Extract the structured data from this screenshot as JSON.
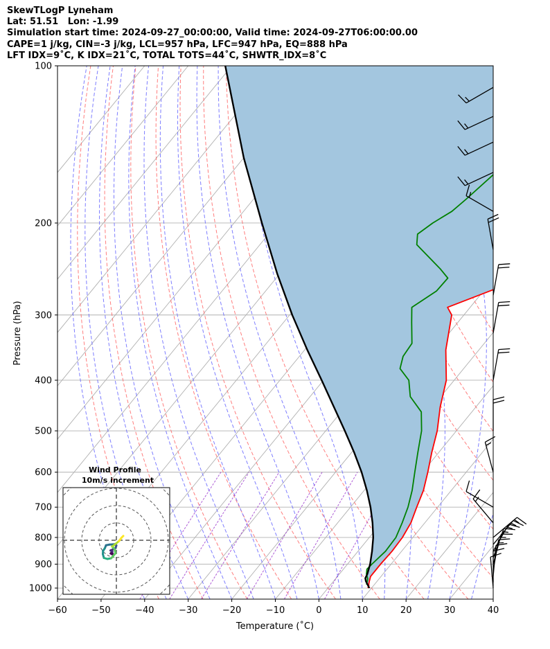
{
  "header": {
    "lines": [
      "SkewTLogP Lyneham",
      "Lat: 51.51   Lon: -1.99",
      "Simulation start time: 2024-09-27_00:00:00, Valid time: 2024-09-27T06:00:00.00",
      "CAPE=1 j/kg, CIN=-3 j/kg, LCL=957 hPa, LFC=947 hPa, EQ=888 hPa",
      "LFT IDX=9˚C, K IDX=21˚C, TOTAL TOTS=44˚C, SHWTR_IDX=8˚C"
    ]
  },
  "chart_data": [
    {
      "type": "line",
      "subtype": "skew-t log-p",
      "xlabel": "Temperature (˚C)",
      "ylabel": "Pressure (hPa)",
      "x_axis": {
        "range": [
          -60,
          40
        ],
        "ticks": [
          -60,
          -50,
          -40,
          -30,
          -20,
          -10,
          0,
          10,
          20,
          30,
          40
        ]
      },
      "y_axis": {
        "scale": "log",
        "range": [
          1050,
          100
        ],
        "ticks": [
          1000,
          900,
          800,
          700,
          600,
          500,
          400,
          300,
          200,
          100
        ]
      },
      "grid": true,
      "colors": {
        "temperature": "#ff0000",
        "dewpoint": "#008000",
        "parcel": "#000000",
        "cape_fill": "#a3c6df",
        "dry_adiabats": "#ff6666",
        "moist_adiabats": "#6666ff",
        "mixing_ratio": "#9933cc",
        "isotherms": "#b0b0b0"
      },
      "series": [
        {
          "key": "temperature",
          "points": [
            [
              1000,
              9.2
            ],
            [
              970,
              8.2
            ],
            [
              950,
              7.6
            ],
            [
              925,
              7.6
            ],
            [
              900,
              7.6
            ],
            [
              850,
              7.8
            ],
            [
              800,
              7.6
            ],
            [
              750,
              6.8
            ],
            [
              700,
              5.2
            ],
            [
              650,
              3.6
            ],
            [
              600,
              1.2
            ],
            [
              550,
              -1.6
            ],
            [
              500,
              -4.4
            ],
            [
              450,
              -8.2
            ],
            [
              400,
              -11.8
            ],
            [
              350,
              -17.6
            ],
            [
              300,
              -22.8
            ],
            [
              290,
              -25.2
            ],
            [
              270,
              -18.6
            ],
            [
              250,
              -11.4
            ],
            [
              220,
              -3.8
            ],
            [
              200,
              1.6
            ],
            [
              180,
              7.6
            ],
            [
              170,
              12.6
            ],
            [
              150,
              18.4
            ],
            [
              130,
              21.2
            ],
            [
              110,
              23.6
            ],
            [
              100,
              24.0
            ]
          ]
        },
        {
          "key": "dewpoint",
          "points": [
            [
              985,
              8.2
            ],
            [
              960,
              7.4
            ],
            [
              940,
              6.2
            ],
            [
              920,
              5.4
            ],
            [
              900,
              5.6
            ],
            [
              850,
              6.3
            ],
            [
              800,
              6.1
            ],
            [
              750,
              4.8
            ],
            [
              700,
              3.2
            ],
            [
              650,
              1.0
            ],
            [
              600,
              -1.8
            ],
            [
              550,
              -4.8
            ],
            [
              500,
              -8.0
            ],
            [
              460,
              -11.6
            ],
            [
              430,
              -17.0
            ],
            [
              400,
              -20.4
            ],
            [
              380,
              -24.6
            ],
            [
              360,
              -26.2
            ],
            [
              340,
              -26.6
            ],
            [
              310,
              -30.6
            ],
            [
              290,
              -33.4
            ],
            [
              270,
              -30.8
            ],
            [
              255,
              -30.6
            ],
            [
              245,
              -34.0
            ],
            [
              220,
              -44.0
            ],
            [
              210,
              -45.8
            ],
            [
              200,
              -44.4
            ],
            [
              190,
              -42.2
            ],
            [
              180,
              -41.2
            ],
            [
              160,
              -39.4
            ],
            [
              140,
              -35.0
            ],
            [
              120,
              -28.2
            ],
            [
              100,
              -21.0
            ]
          ]
        },
        {
          "key": "parcel",
          "points": [
            [
              1000,
              9.5
            ],
            [
              970,
              7.4
            ],
            [
              957,
              6.7
            ],
            [
              940,
              6.4
            ],
            [
              900,
              5.2
            ],
            [
              850,
              3.2
            ],
            [
              800,
              0.9
            ],
            [
              750,
              -2.0
            ],
            [
              700,
              -5.4
            ],
            [
              650,
              -9.4
            ],
            [
              600,
              -14.0
            ],
            [
              550,
              -19.4
            ],
            [
              500,
              -25.6
            ],
            [
              450,
              -32.6
            ],
            [
              400,
              -40.4
            ],
            [
              350,
              -49.4
            ],
            [
              300,
              -59.4
            ],
            [
              250,
              -70.6
            ],
            [
              200,
              -83.6
            ],
            [
              150,
              -100.0
            ],
            [
              100,
              -121.5
            ]
          ]
        }
      ]
    },
    {
      "type": "line",
      "subtype": "hodograph",
      "title": "Wind Profile",
      "subtitle": "10m/s increment",
      "ring_spacing": 10,
      "units": "m/s",
      "points": [
        [
          4.0,
          2.5
        ],
        [
          3.0,
          1.5
        ],
        [
          1.5,
          -0.5
        ],
        [
          -1.0,
          -2.5
        ],
        [
          -1.5,
          -3.0
        ],
        [
          -2.5,
          -3.6
        ],
        [
          -1.0,
          -5.2
        ],
        [
          -0.5,
          -7.5
        ],
        [
          -3.0,
          -10.4
        ],
        [
          -5.2,
          -10.8
        ],
        [
          -7.2,
          -10.2
        ],
        [
          -7.8,
          -8.0
        ],
        [
          -7.7,
          -6.2
        ],
        [
          -6.6,
          -4.5
        ],
        [
          -6.0,
          -2.9
        ],
        [
          -4.0,
          -2.5
        ],
        [
          -1.0,
          -2.3
        ],
        [
          0.0,
          -3.0
        ],
        [
          -0.5,
          -4.6
        ],
        [
          -2.0,
          -5.3
        ],
        [
          -3.4,
          -5.9
        ],
        [
          -2.3,
          -6.6
        ],
        [
          -3.3,
          -7.6
        ],
        [
          -2.0,
          -8.3
        ],
        [
          -2.6,
          -6.6
        ]
      ]
    }
  ],
  "wind_barbs": [
    {
      "p": 1000,
      "dir_deg": 355,
      "speed_kt": 10
    },
    {
      "p": 975,
      "dir_deg": 0,
      "speed_kt": 10
    },
    {
      "p": 950,
      "dir_deg": 5,
      "speed_kt": 10
    },
    {
      "p": 925,
      "dir_deg": 10,
      "speed_kt": 15
    },
    {
      "p": 900,
      "dir_deg": 15,
      "speed_kt": 15
    },
    {
      "p": 875,
      "dir_deg": 20,
      "speed_kt": 15
    },
    {
      "p": 850,
      "dir_deg": 30,
      "speed_kt": 15
    },
    {
      "p": 825,
      "dir_deg": 40,
      "speed_kt": 15
    },
    {
      "p": 800,
      "dir_deg": 50,
      "speed_kt": 15
    },
    {
      "p": 750,
      "dir_deg": 320,
      "speed_kt": 15
    },
    {
      "p": 700,
      "dir_deg": 300,
      "speed_kt": 10
    },
    {
      "p": 600,
      "dir_deg": 345,
      "speed_kt": 15
    },
    {
      "p": 500,
      "dir_deg": 0,
      "speed_kt": 20
    },
    {
      "p": 400,
      "dir_deg": 10,
      "speed_kt": 20
    },
    {
      "p": 325,
      "dir_deg": 10,
      "speed_kt": 20
    },
    {
      "p": 275,
      "dir_deg": 10,
      "speed_kt": 20
    },
    {
      "p": 225,
      "dir_deg": 350,
      "speed_kt": 20
    },
    {
      "p": 190,
      "dir_deg": 300,
      "speed_kt": 15
    },
    {
      "p": 160,
      "dir_deg": 245,
      "speed_kt": 15
    },
    {
      "p": 140,
      "dir_deg": 245,
      "speed_kt": 15
    },
    {
      "p": 125,
      "dir_deg": 245,
      "speed_kt": 15
    },
    {
      "p": 110,
      "dir_deg": 240,
      "speed_kt": 15
    }
  ]
}
